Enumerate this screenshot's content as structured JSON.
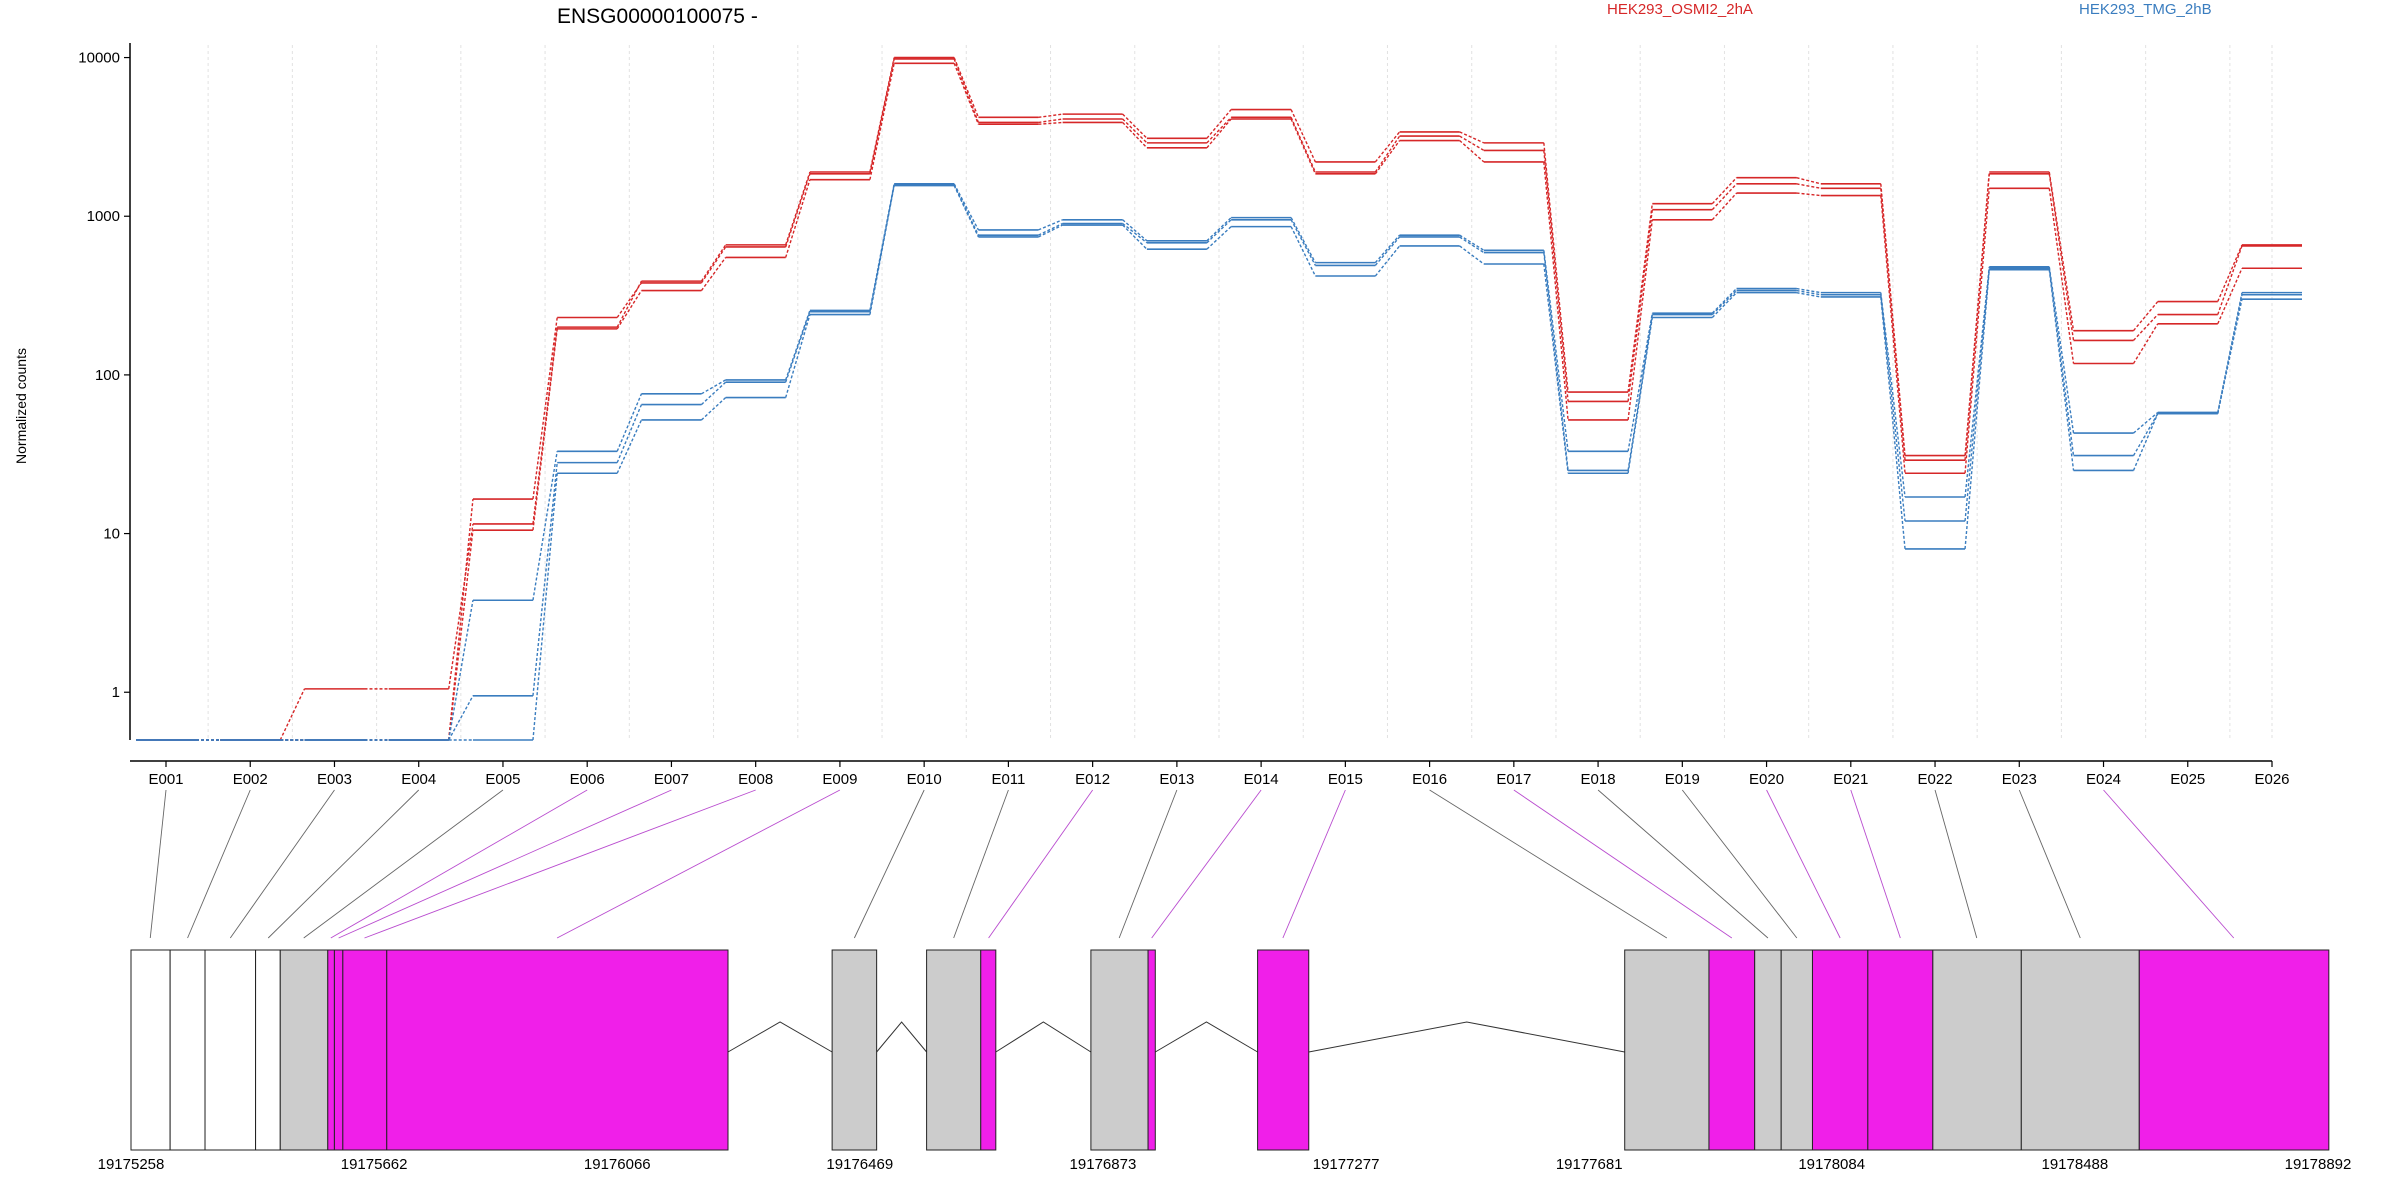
{
  "chart_data": {
    "type": "line",
    "title": "ENSG00000100075 -",
    "ylabel": "Normalized counts",
    "xlabel": "",
    "yscale": "log",
    "ylim": [
      0.5,
      12000
    ],
    "yticks": [
      "1",
      "10",
      "100",
      "1000",
      "10000"
    ],
    "ytick_values": [
      1,
      10,
      100,
      1000,
      10000
    ],
    "grid": "vertical dotted",
    "legend": "top",
    "categories": [
      "E001",
      "E002",
      "E003",
      "E004",
      "E005",
      "E006",
      "E007",
      "E008",
      "E009",
      "E010",
      "E011",
      "E012",
      "E013",
      "E014",
      "E015",
      "E016",
      "E017",
      "E018",
      "E019",
      "E020",
      "E021",
      "E022",
      "E023",
      "E024",
      "E025",
      "E026"
    ],
    "colors": {
      "HEK293_OSMI2_2hA": "#d62728",
      "HEK293_TMG_2hB": "#3a7dbf",
      "exon_default": "#cccccc",
      "exon_highlight": "#f01fe9",
      "connector": "#666666",
      "connector_highlight": "#b94ccf"
    },
    "series": [
      {
        "name": "HEK293_OSMI2_2hA",
        "group": "HEK293_OSMI2_2hA",
        "values": [
          0.5,
          0.5,
          1.05,
          1.05,
          11.5,
          200,
          390,
          660,
          1900,
          10000,
          4200,
          4400,
          3100,
          4700,
          2200,
          3400,
          2900,
          78,
          1200,
          1750,
          1600,
          31,
          1900,
          190,
          290,
          660
        ]
      },
      {
        "group": "HEK293_OSMI2_2hA",
        "values": [
          0.5,
          0.5,
          0.5,
          0.5,
          16.5,
          230,
          380,
          640,
          1850,
          9800,
          3900,
          4100,
          2900,
          4200,
          1900,
          3200,
          2600,
          68,
          1100,
          1600,
          1500,
          29,
          1850,
          165,
          240,
          650
        ]
      },
      {
        "group": "HEK293_OSMI2_2hA",
        "values": [
          0.5,
          0.5,
          0.5,
          0.5,
          10.5,
          195,
          340,
          550,
          1700,
          9200,
          3800,
          3900,
          2700,
          4100,
          1850,
          3000,
          2200,
          52,
          950,
          1400,
          1350,
          24,
          1500,
          118,
          210,
          470
        ]
      },
      {
        "name": "HEK293_TMG_2hB",
        "group": "HEK293_TMG_2hB",
        "values": [
          0.5,
          0.5,
          0.5,
          0.5,
          3.8,
          33,
          76,
          93,
          255,
          1600,
          820,
          950,
          700,
          980,
          510,
          760,
          610,
          33,
          245,
          350,
          330,
          17,
          480,
          43,
          58,
          330
        ]
      },
      {
        "group": "HEK293_TMG_2hB",
        "values": [
          0.5,
          0.5,
          0.5,
          0.5,
          0.95,
          28,
          65,
          90,
          250,
          1580,
          760,
          900,
          680,
          950,
          490,
          740,
          590,
          25,
          240,
          340,
          320,
          12,
          470,
          31,
          57,
          320
        ]
      },
      {
        "group": "HEK293_TMG_2hB",
        "values": [
          0.5,
          0.5,
          0.5,
          0.5,
          0.5,
          24,
          52,
          72,
          240,
          1560,
          740,
          880,
          620,
          860,
          420,
          650,
          500,
          24,
          230,
          330,
          310,
          8,
          460,
          25,
          57,
          300
        ]
      }
    ],
    "gene_model": {
      "xticks": [
        "19175258",
        "19175662",
        "19176066",
        "19176469",
        "19176873",
        "19177277",
        "19177681",
        "19178084",
        "19178488",
        "19178892"
      ],
      "xtick_values": [
        19175258,
        19175662,
        19176066,
        19176469,
        19176873,
        19177277,
        19177681,
        19178084,
        19178488,
        19178892
      ],
      "exons": [
        {
          "start": 19175258,
          "end": 19175323,
          "type": "plain"
        },
        {
          "start": 19175323,
          "end": 19175381,
          "type": "plain"
        },
        {
          "start": 19175381,
          "end": 19175465,
          "type": "plain"
        },
        {
          "start": 19175465,
          "end": 19175506,
          "type": "plain"
        },
        {
          "start": 19175506,
          "end": 19175585,
          "type": "default"
        },
        {
          "start": 19175585,
          "end": 19175596,
          "type": "highlight"
        },
        {
          "start": 19175596,
          "end": 19175610,
          "type": "highlight"
        },
        {
          "start": 19175610,
          "end": 19175683,
          "type": "highlight"
        },
        {
          "start": 19175683,
          "end": 19176250,
          "type": "highlight"
        },
        {
          "start": 19176423,
          "end": 19176497,
          "type": "default"
        },
        {
          "start": 19176580,
          "end": 19176670,
          "type": "default"
        },
        {
          "start": 19176670,
          "end": 19176695,
          "type": "highlight"
        },
        {
          "start": 19176853,
          "end": 19176948,
          "type": "default"
        },
        {
          "start": 19176948,
          "end": 19176960,
          "type": "highlight"
        },
        {
          "start": 19177130,
          "end": 19177215,
          "type": "highlight"
        },
        {
          "start": 19177740,
          "end": 19177880,
          "type": "default"
        },
        {
          "start": 19177880,
          "end": 19177956,
          "type": "highlight"
        },
        {
          "start": 19177956,
          "end": 19178000,
          "type": "default"
        },
        {
          "start": 19178000,
          "end": 19178052,
          "type": "default"
        },
        {
          "start": 19178052,
          "end": 19178144,
          "type": "highlight"
        },
        {
          "start": 19178144,
          "end": 19178252,
          "type": "highlight"
        },
        {
          "start": 19178252,
          "end": 19178399,
          "type": "default"
        },
        {
          "start": 19178399,
          "end": 19178595,
          "type": "default"
        },
        {
          "start": 19178595,
          "end": 19178910,
          "type": "highlight"
        }
      ],
      "introns": [
        {
          "start": 19176250,
          "end": 19176423
        },
        {
          "start": 19176497,
          "end": 19176580
        },
        {
          "start": 19176695,
          "end": 19176853
        },
        {
          "start": 19176960,
          "end": 19177130
        },
        {
          "start": 19177215,
          "end": 19177740
        }
      ],
      "connectors": [
        {
          "start": 19175290,
          "highlight": false
        },
        {
          "start": 19175352,
          "highlight": false
        },
        {
          "start": 19175423,
          "highlight": false
        },
        {
          "start": 19175486,
          "highlight": false
        },
        {
          "start": 19175545,
          "highlight": false
        },
        {
          "start": 19175590,
          "highlight": true
        },
        {
          "start": 19175603,
          "highlight": true
        },
        {
          "start": 19175646,
          "highlight": true
        },
        {
          "start": 19175966,
          "highlight": true
        },
        {
          "start": 19176460,
          "highlight": false
        },
        {
          "start": 19176625,
          "highlight": false
        },
        {
          "start": 19176683,
          "highlight": true
        },
        {
          "start": 19176900,
          "highlight": false
        },
        {
          "start": 19176954,
          "highlight": true
        },
        {
          "start": 19177172,
          "highlight": true
        },
        {
          "start": 19177810,
          "highlight": false
        },
        {
          "start": 19177918,
          "highlight": true
        },
        {
          "start": 19177978,
          "highlight": false
        },
        {
          "start": 19178026,
          "highlight": false
        },
        {
          "start": 19178098,
          "highlight": true
        },
        {
          "start": 19178198,
          "highlight": true
        },
        {
          "start": 19178325,
          "highlight": false
        },
        {
          "start": 19178497,
          "highlight": false
        },
        {
          "start": 19178752,
          "highlight": true
        }
      ]
    }
  }
}
